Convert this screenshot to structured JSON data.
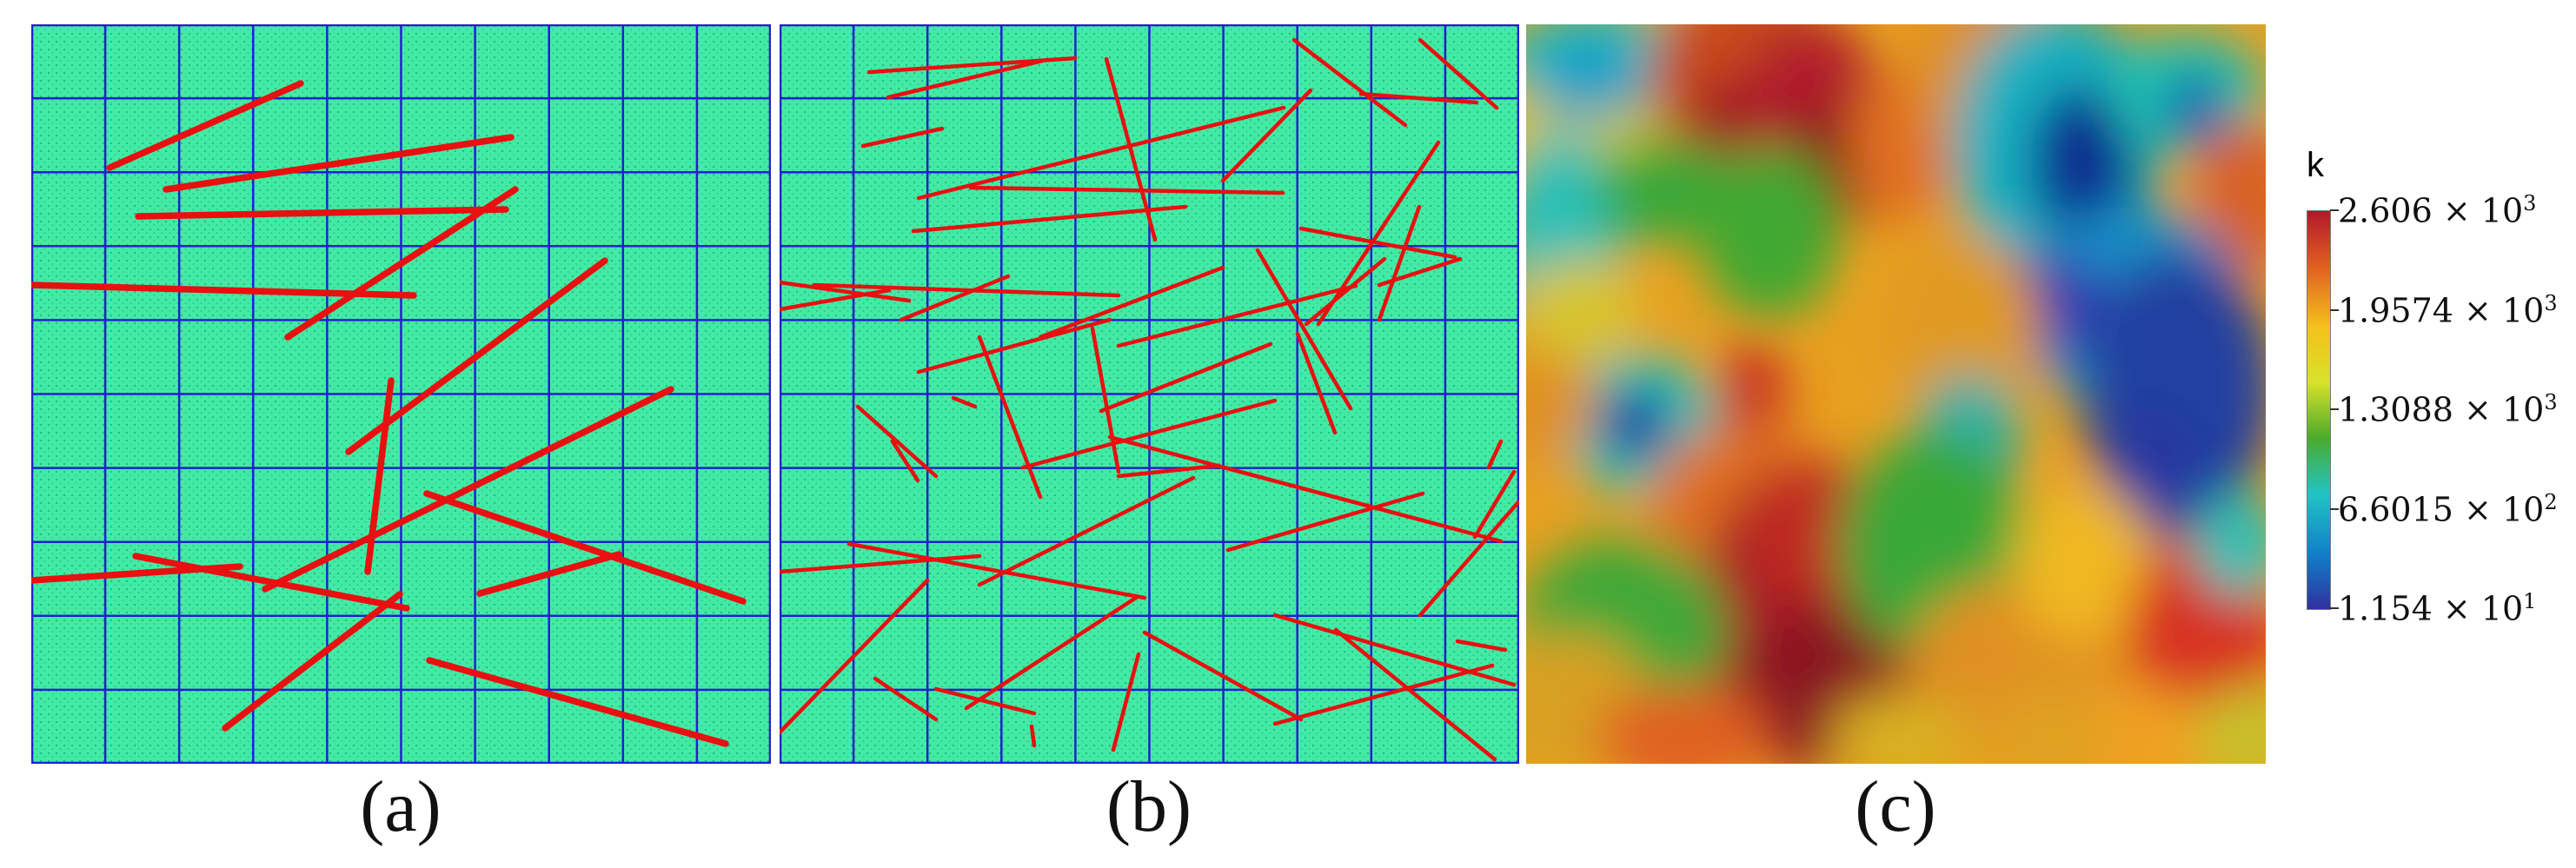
{
  "captions": {
    "a": "(a)",
    "b": "(b)",
    "c": "(c)"
  },
  "colorbar": {
    "title": "k",
    "labels": [
      {
        "mantissa": "2.606",
        "times": "×",
        "base": "10",
        "exp": "3"
      },
      {
        "mantissa": "1.9574",
        "times": "×",
        "base": "10",
        "exp": "3"
      },
      {
        "mantissa": "1.3088",
        "times": "×",
        "base": "10",
        "exp": "3"
      },
      {
        "mantissa": "6.6015",
        "times": "×",
        "base": "10",
        "exp": "2"
      },
      {
        "mantissa": "1.154",
        "times": "×",
        "base": "10",
        "exp": "1"
      }
    ],
    "colors": [
      "#b2182b",
      "#e06020",
      "#f4c01c",
      "#d8e22a",
      "#4caa2c",
      "#21c4c4",
      "#1080c8",
      "#3030a0"
    ]
  },
  "colors": {
    "mesh_fill": "#3ee8a0",
    "mesh_dot": "#1fbf7a",
    "grid_line": "#2020d0",
    "fracture": "#e81010"
  }
}
